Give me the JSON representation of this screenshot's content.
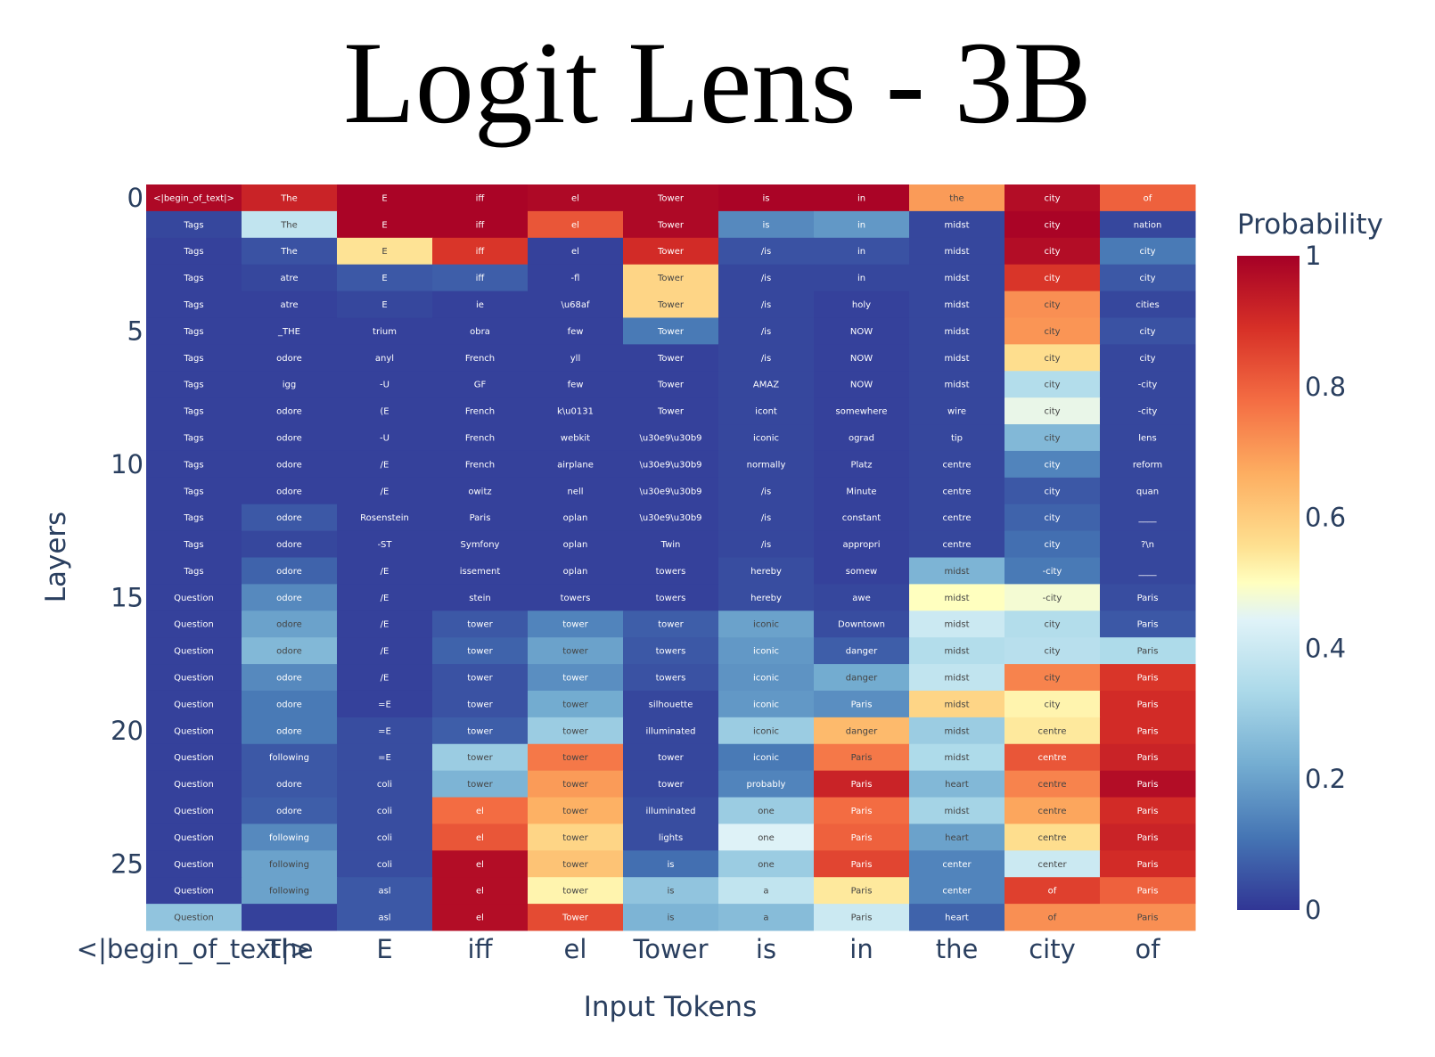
{
  "title": "Logit Lens - 3B",
  "chart_data": {
    "type": "heatmap",
    "xlabel": "Input Tokens",
    "ylabel": "Layers",
    "colorbar_title": "Probability",
    "colorbar_ticks": [
      "0",
      "0.2",
      "0.4",
      "0.6",
      "0.8",
      "1"
    ],
    "zrange": [
      0,
      1
    ],
    "colorscale": "RdYlBu (reversed)",
    "x_tokens": [
      "<|begin_of_text|>",
      "The",
      "E",
      "iff",
      "el",
      "Tower",
      "is",
      "in",
      "the",
      "city",
      "of"
    ],
    "y_ticks": [
      "0",
      "5",
      "10",
      "15",
      "20",
      "25"
    ],
    "layers": [
      0,
      1,
      2,
      3,
      4,
      5,
      6,
      7,
      8,
      9,
      10,
      11,
      12,
      13,
      14,
      15,
      16,
      17,
      18,
      19,
      20,
      21,
      22,
      23,
      24,
      25,
      26,
      27
    ],
    "tokens": [
      [
        "<|begin_of_text|>",
        "The",
        "E",
        "iff",
        "el",
        "Tower",
        "is",
        "in",
        "the",
        "city",
        "of"
      ],
      [
        "Tags",
        "The",
        "E",
        "iff",
        "el",
        "Tower",
        "is",
        "in",
        "midst",
        "city",
        "nation"
      ],
      [
        "Tags",
        "The",
        "E",
        "iff",
        "el",
        "Tower",
        "/is",
        "in",
        "midst",
        "city",
        "city"
      ],
      [
        "Tags",
        "atre",
        "E",
        "iff",
        "-fl",
        "Tower",
        "/is",
        "in",
        "midst",
        "city",
        "city"
      ],
      [
        "Tags",
        "atre",
        "E",
        "ie",
        "\\u68af",
        "Tower",
        "/is",
        "holy",
        "midst",
        "city",
        "cities"
      ],
      [
        "Tags",
        "_THE",
        "trium",
        "obra",
        "few",
        "Tower",
        "/is",
        "NOW",
        "midst",
        "city",
        "city"
      ],
      [
        "Tags",
        "odore",
        "anyl",
        "French",
        "yll",
        "Tower",
        "/is",
        "NOW",
        "midst",
        "city",
        "city"
      ],
      [
        "Tags",
        "igg",
        "-U",
        "GF",
        "few",
        "Tower",
        "AMAZ",
        "NOW",
        "midst",
        "city",
        "-city"
      ],
      [
        "Tags",
        "odore",
        "(E",
        "French",
        "k\\u0131",
        "Tower",
        "icont",
        "somewhere",
        "wire",
        "city",
        "-city"
      ],
      [
        "Tags",
        "odore",
        "-U",
        "French",
        "webkit",
        "\\u30e9\\u30b9",
        "iconic",
        "ograd",
        "tip",
        "city",
        "lens"
      ],
      [
        "Tags",
        "odore",
        "/E",
        "French",
        "airplane",
        "\\u30e9\\u30b9",
        "normally",
        "Platz",
        "centre",
        "city",
        "reform"
      ],
      [
        "Tags",
        "odore",
        "/E",
        "owitz",
        "nell",
        "\\u30e9\\u30b9",
        "/is",
        "Minute",
        "centre",
        "city",
        "quan"
      ],
      [
        "Tags",
        "odore",
        "Rosenstein",
        "Paris",
        "oplan",
        "\\u30e9\\u30b9",
        "/is",
        "constant",
        "centre",
        "city",
        "____"
      ],
      [
        "Tags",
        "odore",
        "-ST",
        "Symfony",
        "oplan",
        "Twin",
        "/is",
        "appropri",
        "centre",
        "city",
        "?\\n"
      ],
      [
        "Tags",
        "odore",
        "/E",
        "issement",
        "oplan",
        "towers",
        "hereby",
        "somew",
        "midst",
        "-city",
        "____"
      ],
      [
        "Question",
        "odore",
        "/E",
        "stein",
        "towers",
        "towers",
        "hereby",
        "awe",
        "midst",
        "-city",
        "Paris"
      ],
      [
        "Question",
        "odore",
        "/E",
        "tower",
        "tower",
        "tower",
        "iconic",
        "Downtown",
        "midst",
        "city",
        "Paris"
      ],
      [
        "Question",
        "odore",
        "/E",
        "tower",
        "tower",
        "towers",
        "iconic",
        "danger",
        "midst",
        "city",
        "Paris"
      ],
      [
        "Question",
        "odore",
        "/E",
        "tower",
        "tower",
        "towers",
        "iconic",
        "danger",
        "midst",
        "city",
        "Paris"
      ],
      [
        "Question",
        "odore",
        "=E",
        "tower",
        "tower",
        "silhouette",
        "iconic",
        "Paris",
        "midst",
        "city",
        "Paris"
      ],
      [
        "Question",
        "odore",
        "=E",
        "tower",
        "tower",
        "illuminated",
        "iconic",
        "danger",
        "midst",
        "centre",
        "Paris"
      ],
      [
        "Question",
        "following",
        "=E",
        "tower",
        "tower",
        "tower",
        "iconic",
        "Paris",
        "midst",
        "centre",
        "Paris"
      ],
      [
        "Question",
        "odore",
        "coli",
        "tower",
        "tower",
        "tower",
        "probably",
        "Paris",
        "heart",
        "centre",
        "Paris"
      ],
      [
        "Question",
        "odore",
        "coli",
        "el",
        "tower",
        "illuminated",
        "one",
        "Paris",
        "midst",
        "centre",
        "Paris"
      ],
      [
        "Question",
        "following",
        "coli",
        "el",
        "tower",
        "lights",
        "one",
        "Paris",
        "heart",
        "centre",
        "Paris"
      ],
      [
        "Question",
        "following",
        "coli",
        "el",
        "tower",
        "is",
        "one",
        "Paris",
        "center",
        "center",
        "Paris"
      ],
      [
        "Question",
        "following",
        "asl",
        "el",
        "tower",
        "is",
        "a",
        "Paris",
        "center",
        "of",
        "Paris"
      ],
      [
        "Question",
        "",
        "asl",
        "el",
        "Tower",
        "is",
        "a",
        "Paris",
        "heart",
        "of",
        "Paris"
      ]
    ],
    "probabilities": [
      [
        0.98,
        0.92,
        0.99,
        0.99,
        0.98,
        0.98,
        0.99,
        0.99,
        0.7,
        0.97,
        0.8
      ],
      [
        0.03,
        0.38,
        0.99,
        0.99,
        0.82,
        0.98,
        0.15,
        0.18,
        0.03,
        0.99,
        0.03
      ],
      [
        0.02,
        0.05,
        0.55,
        0.88,
        0.02,
        0.9,
        0.05,
        0.05,
        0.03,
        0.97,
        0.12
      ],
      [
        0.02,
        0.03,
        0.06,
        0.07,
        0.02,
        0.58,
        0.03,
        0.03,
        0.03,
        0.88,
        0.06
      ],
      [
        0.02,
        0.02,
        0.03,
        0.02,
        0.02,
        0.58,
        0.03,
        0.02,
        0.03,
        0.72,
        0.03
      ],
      [
        0.02,
        0.02,
        0.02,
        0.02,
        0.02,
        0.12,
        0.03,
        0.02,
        0.03,
        0.71,
        0.05
      ],
      [
        0.02,
        0.02,
        0.02,
        0.02,
        0.02,
        0.02,
        0.03,
        0.02,
        0.03,
        0.56,
        0.03
      ],
      [
        0.02,
        0.02,
        0.02,
        0.02,
        0.02,
        0.02,
        0.03,
        0.02,
        0.03,
        0.35,
        0.03
      ],
      [
        0.02,
        0.02,
        0.02,
        0.02,
        0.02,
        0.02,
        0.03,
        0.02,
        0.03,
        0.46,
        0.03
      ],
      [
        0.02,
        0.02,
        0.02,
        0.02,
        0.02,
        0.02,
        0.03,
        0.02,
        0.03,
        0.25,
        0.03
      ],
      [
        0.02,
        0.02,
        0.02,
        0.02,
        0.02,
        0.02,
        0.03,
        0.02,
        0.03,
        0.14,
        0.03
      ],
      [
        0.02,
        0.02,
        0.02,
        0.02,
        0.02,
        0.02,
        0.03,
        0.02,
        0.03,
        0.06,
        0.03
      ],
      [
        0.02,
        0.06,
        0.02,
        0.02,
        0.02,
        0.02,
        0.03,
        0.02,
        0.03,
        0.08,
        0.03
      ],
      [
        0.02,
        0.03,
        0.02,
        0.02,
        0.02,
        0.02,
        0.03,
        0.02,
        0.03,
        0.1,
        0.03
      ],
      [
        0.02,
        0.08,
        0.02,
        0.02,
        0.02,
        0.02,
        0.04,
        0.02,
        0.24,
        0.12,
        0.03
      ],
      [
        0.02,
        0.15,
        0.02,
        0.02,
        0.02,
        0.02,
        0.04,
        0.03,
        0.5,
        0.48,
        0.04
      ],
      [
        0.02,
        0.2,
        0.02,
        0.06,
        0.14,
        0.07,
        0.2,
        0.04,
        0.4,
        0.35,
        0.06
      ],
      [
        0.02,
        0.25,
        0.02,
        0.08,
        0.2,
        0.06,
        0.18,
        0.07,
        0.35,
        0.36,
        0.34
      ],
      [
        0.02,
        0.15,
        0.02,
        0.05,
        0.16,
        0.05,
        0.17,
        0.22,
        0.38,
        0.74,
        0.88
      ],
      [
        0.02,
        0.12,
        0.02,
        0.05,
        0.22,
        0.03,
        0.18,
        0.16,
        0.58,
        0.52,
        0.9
      ],
      [
        0.02,
        0.12,
        0.04,
        0.07,
        0.3,
        0.03,
        0.3,
        0.64,
        0.3,
        0.54,
        0.9
      ],
      [
        0.02,
        0.06,
        0.04,
        0.3,
        0.76,
        0.03,
        0.12,
        0.76,
        0.34,
        0.82,
        0.92
      ],
      [
        0.02,
        0.06,
        0.04,
        0.24,
        0.7,
        0.03,
        0.14,
        0.92,
        0.25,
        0.74,
        0.97
      ],
      [
        0.02,
        0.07,
        0.04,
        0.78,
        0.66,
        0.04,
        0.3,
        0.78,
        0.32,
        0.68,
        0.9
      ],
      [
        0.02,
        0.15,
        0.04,
        0.82,
        0.58,
        0.04,
        0.44,
        0.8,
        0.2,
        0.56,
        0.92
      ],
      [
        0.02,
        0.2,
        0.04,
        0.97,
        0.62,
        0.1,
        0.3,
        0.85,
        0.14,
        0.4,
        0.9
      ],
      [
        0.02,
        0.2,
        0.06,
        0.97,
        0.52,
        0.28,
        0.38,
        0.54,
        0.14,
        0.86,
        0.8
      ],
      [
        0.28,
        0.02,
        0.06,
        0.97,
        0.84,
        0.24,
        0.26,
        0.4,
        0.08,
        0.72,
        0.72
      ]
    ]
  }
}
